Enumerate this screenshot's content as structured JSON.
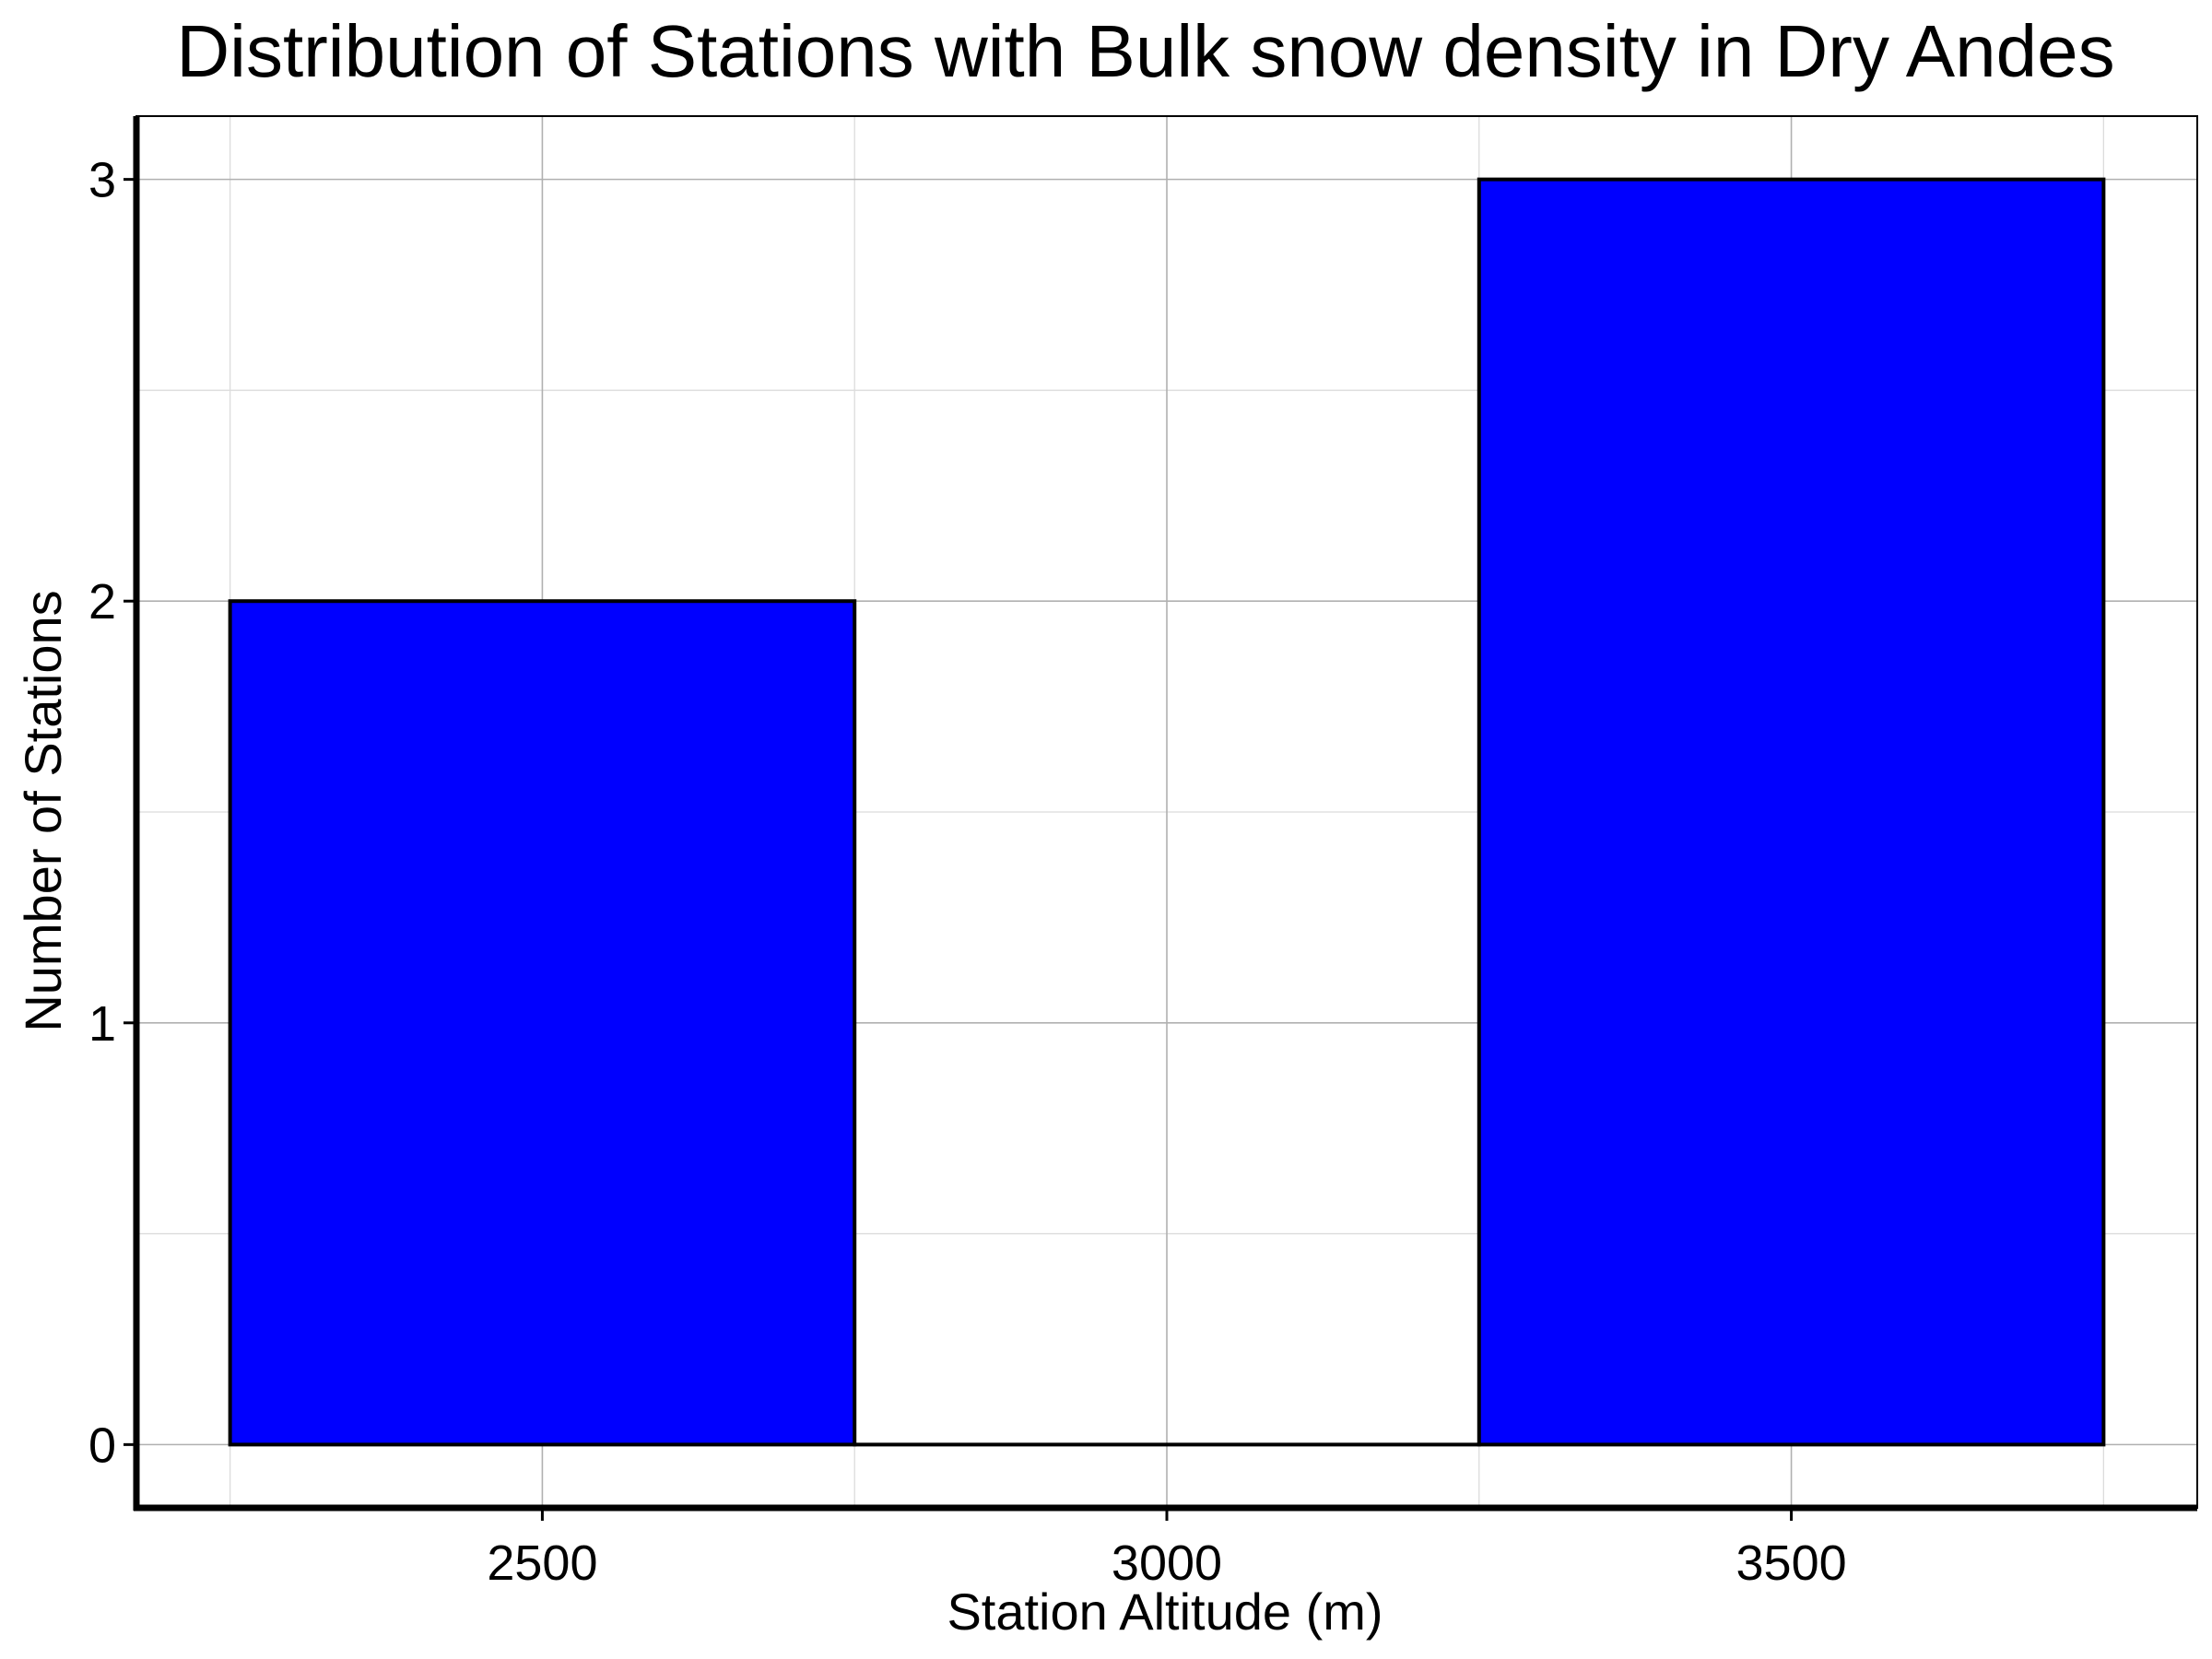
{
  "chart_data": {
    "type": "bar",
    "title": "Distribution of Stations with Bulk snow density in Dry Andes",
    "xlabel": "Station Altitude (m)",
    "ylabel": "Number of Stations",
    "bins": [
      {
        "start": 2250,
        "end": 2750,
        "count": 2
      },
      {
        "start": 2750,
        "end": 3250,
        "count": 0
      },
      {
        "start": 3250,
        "end": 3750,
        "count": 3
      }
    ],
    "xlim": [
      2175,
      3825
    ],
    "ylim": [
      -0.15,
      3.15
    ],
    "xticks": [
      2500,
      3000,
      3500
    ],
    "xtick_labels": [
      "2500",
      "3000",
      "3500"
    ],
    "yticks": [
      0,
      1,
      2,
      3
    ],
    "ytick_labels": [
      "0",
      "1",
      "2",
      "3"
    ],
    "grid": true,
    "bar_color": "#0000ff",
    "edge_color": "#000000"
  }
}
